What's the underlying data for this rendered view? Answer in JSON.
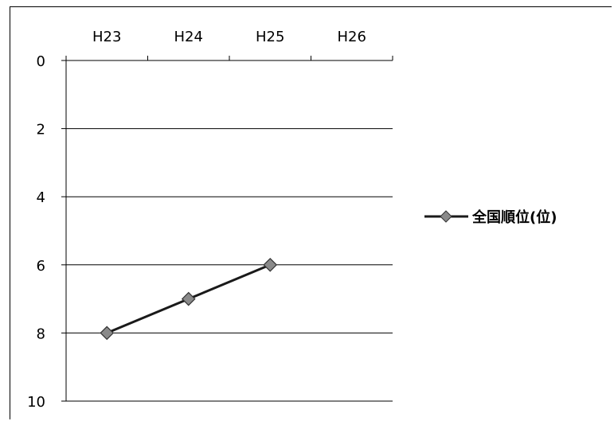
{
  "chart_data": {
    "type": "line",
    "categories": [
      "H23",
      "H24",
      "H25",
      "H26"
    ],
    "series": [
      {
        "name": "全国順位(位)",
        "values": [
          8,
          7,
          6,
          null
        ]
      }
    ],
    "y_ticks": [
      "0",
      "2",
      "4",
      "6",
      "8",
      "10"
    ],
    "ylim": [
      0,
      10
    ],
    "y_reversed": true,
    "x_axis_position": "top",
    "grid": "horizontal",
    "legend": "right",
    "colors": {
      "line": "#1a1a1a",
      "marker_fill": "#8a8a8a",
      "marker_stroke": "#333333"
    }
  }
}
